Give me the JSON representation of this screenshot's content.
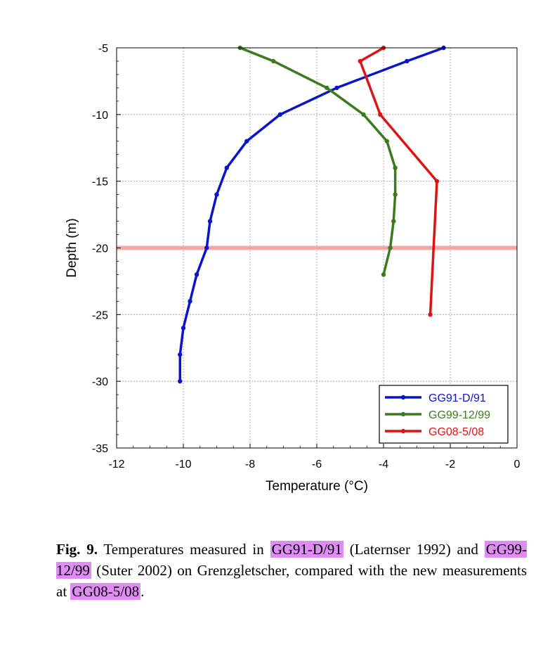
{
  "chart_data": {
    "type": "line",
    "xlabel": "Temperature (°C)",
    "ylabel": "Depth (m)",
    "xlim": [
      -12,
      0
    ],
    "ylim": [
      -35,
      -5
    ],
    "xticks": [
      -12,
      -10,
      -8,
      -6,
      -4,
      -2,
      0
    ],
    "yticks": [
      -5,
      -10,
      -15,
      -20,
      -25,
      -30,
      -35
    ],
    "grid": true,
    "legend_position": "bottom-right",
    "reference_line": {
      "y": -20,
      "color": "#f29a9a"
    },
    "series": [
      {
        "name": "GG91-D/91",
        "color": "#0a14c8",
        "points": [
          [
            -2.2,
            -5
          ],
          [
            -3.3,
            -6
          ],
          [
            -5.4,
            -8
          ],
          [
            -7.1,
            -10
          ],
          [
            -8.1,
            -12
          ],
          [
            -8.7,
            -14
          ],
          [
            -9.0,
            -16
          ],
          [
            -9.2,
            -18
          ],
          [
            -9.3,
            -20
          ],
          [
            -9.6,
            -22
          ],
          [
            -9.8,
            -24
          ],
          [
            -10.0,
            -26
          ],
          [
            -10.1,
            -28
          ],
          [
            -10.1,
            -30
          ]
        ]
      },
      {
        "name": "GG99-12/99",
        "color": "#3c7a1e",
        "points": [
          [
            -8.3,
            -5
          ],
          [
            -7.3,
            -6
          ],
          [
            -5.7,
            -8
          ],
          [
            -4.6,
            -10
          ],
          [
            -3.9,
            -12
          ],
          [
            -3.65,
            -14
          ],
          [
            -3.65,
            -16
          ],
          [
            -3.7,
            -18
          ],
          [
            -3.8,
            -20
          ],
          [
            -4.0,
            -22
          ]
        ]
      },
      {
        "name": "GG08-5/08",
        "color": "#dc1414",
        "points": [
          [
            -4.0,
            -5
          ],
          [
            -4.7,
            -6
          ],
          [
            -4.1,
            -10
          ],
          [
            -2.4,
            -15
          ],
          [
            -2.6,
            -25
          ]
        ]
      }
    ]
  },
  "caption": {
    "label": "Fig. 9.",
    "t1": " Temperatures measured in ",
    "h1": "GG91-D/91",
    "t2": " (Laternser 1992) and ",
    "h2": "GG99-12/99",
    "t3": " (Suter 2002) on Grenzgletscher, compared with the new measurements at ",
    "h3": "GG08-5/08",
    "t4": "."
  }
}
